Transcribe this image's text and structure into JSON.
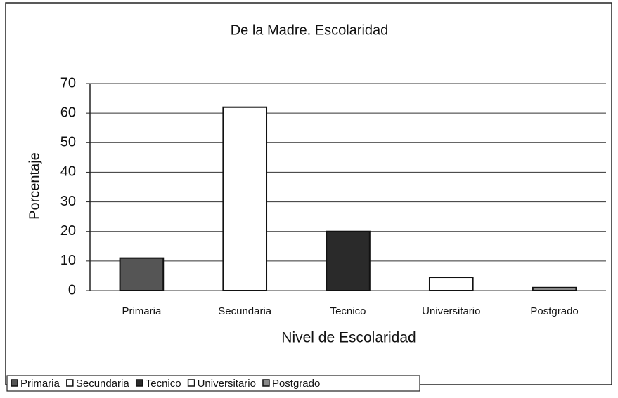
{
  "chart_data": {
    "type": "bar",
    "title": "De la Madre. Escolaridad",
    "x_label": "Nivel de Escolaridad",
    "y_label": "Porcentaje",
    "categories": [
      "Primaria",
      "Secundaria",
      "Tecnico",
      "Universitario",
      "Postgrado"
    ],
    "values": [
      11,
      62,
      20,
      4.5,
      1
    ],
    "colors": [
      "#555555",
      "#ffffff",
      "#2a2a2a",
      "#ffffff",
      "#8a8a8a"
    ],
    "ylim": [
      0,
      70
    ],
    "yticks": [
      0,
      10,
      20,
      30,
      40,
      50,
      60,
      70
    ],
    "grid": true,
    "legend": "bottom"
  }
}
